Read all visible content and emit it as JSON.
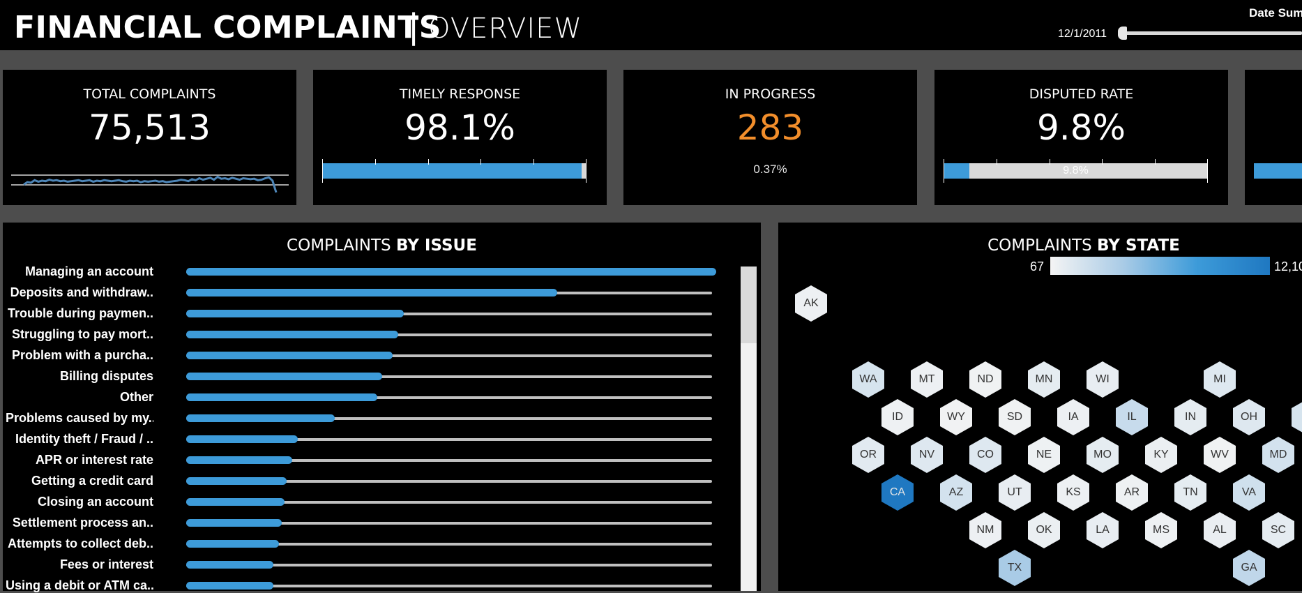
{
  "header": {
    "title": "FINANCIAL COMPLAINTS",
    "separator": "|",
    "subtitle": "OVERVIEW",
    "date_label": "Date Sum",
    "date_value": "12/1/2011"
  },
  "kpis": {
    "total": {
      "title": "TOTAL COMPLAINTS",
      "value": "75,513"
    },
    "timely": {
      "title": "TIMELY RESPONSE",
      "value": "98.1%",
      "fill_fraction": 0.981
    },
    "progress": {
      "title": "IN PROGRESS",
      "value": "283",
      "sub": "0.37%"
    },
    "disputed": {
      "title": "DISPUTED RATE",
      "value": "9.8%",
      "bar_label": "9.8%",
      "fill_fraction": 0.098
    }
  },
  "colors": {
    "accent": "#3d9bd9",
    "orange": "#f28e2b",
    "panel_bg": "#000000",
    "page_bg": "#4d4d4d"
  },
  "issues_panel": {
    "title_light": "COMPLAINTS ",
    "title_bold": "BY ISSUE"
  },
  "chart_data": [
    {
      "type": "line",
      "series": [
        {
          "values": [
            0.1,
            0.35,
            0.3,
            0.55,
            0.4,
            0.5,
            0.45,
            0.6,
            0.5,
            0.55,
            0.45,
            0.5,
            0.4,
            0.45,
            0.5,
            0.55,
            0.45,
            0.5,
            0.55,
            0.4,
            0.5,
            0.45,
            0.55,
            0.5,
            0.45,
            0.5,
            0.55,
            0.45,
            0.4,
            0.5,
            0.45,
            0.5,
            0.35,
            0.45,
            0.4,
            0.45,
            0.5,
            0.4,
            0.45,
            0.35,
            0.4,
            0.45,
            0.5,
            0.6,
            0.55,
            0.45,
            0.65,
            0.55,
            0.75,
            0.6,
            0.7,
            0.8,
            0.6,
            0.9,
            0.7,
            0.75,
            0.65,
            0.8,
            0.7,
            0.6,
            0.75,
            0.7,
            0.65,
            0.7,
            0.55,
            0.6,
            0.75,
            0.85,
            0.5,
            -0.7
          ]
        }
      ]
    },
    {
      "type": "bar",
      "categories": [
        "Managing an account",
        "Deposits and withdraw..",
        "Trouble during paymen..",
        "Struggling to pay mort..",
        "Problem with a purcha..",
        "Billing disputes",
        "Other",
        "Problems caused by my..",
        "Identity theft / Fraud / ..",
        "APR or interest rate",
        "Getting a credit card",
        "Closing an account",
        "Settlement process an..",
        "Attempts to collect deb..",
        "Fees or interest",
        "Using a debit or ATM ca.."
      ],
      "values": [
        100,
        70,
        41,
        40,
        39,
        37,
        36,
        28,
        21,
        20,
        19,
        18.5,
        18,
        17.5,
        16.5,
        16.5
      ]
    },
    {
      "type": "heatmap",
      "title": "COMPLAINTS BY STATE",
      "legend_min": "67",
      "legend_max": "12,10",
      "states": [
        {
          "s": "AK",
          "v": 0.05
        },
        {
          "s": "WA",
          "v": 0.2
        },
        {
          "s": "MT",
          "v": 0.05
        },
        {
          "s": "ND",
          "v": 0.03
        },
        {
          "s": "MN",
          "v": 0.1
        },
        {
          "s": "WI",
          "v": 0.08
        },
        {
          "s": "MI",
          "v": 0.15
        },
        {
          "s": "ID",
          "v": 0.04
        },
        {
          "s": "WY",
          "v": 0.02
        },
        {
          "s": "SD",
          "v": 0.03
        },
        {
          "s": "IA",
          "v": 0.05
        },
        {
          "s": "IL",
          "v": 0.3
        },
        {
          "s": "IN",
          "v": 0.1
        },
        {
          "s": "OH",
          "v": 0.15
        },
        {
          "s": "P",
          "v": 0.2
        },
        {
          "s": "OR",
          "v": 0.12
        },
        {
          "s": "NV",
          "v": 0.15
        },
        {
          "s": "CO",
          "v": 0.15
        },
        {
          "s": "NE",
          "v": 0.04
        },
        {
          "s": "MO",
          "v": 0.1
        },
        {
          "s": "KY",
          "v": 0.06
        },
        {
          "s": "WV",
          "v": 0.03
        },
        {
          "s": "MD",
          "v": 0.22
        },
        {
          "s": "CA",
          "v": 1.0
        },
        {
          "s": "AZ",
          "v": 0.22
        },
        {
          "s": "UT",
          "v": 0.08
        },
        {
          "s": "KS",
          "v": 0.05
        },
        {
          "s": "AR",
          "v": 0.04
        },
        {
          "s": "TN",
          "v": 0.1
        },
        {
          "s": "VA",
          "v": 0.25
        },
        {
          "s": "NM",
          "v": 0.05
        },
        {
          "s": "OK",
          "v": 0.06
        },
        {
          "s": "LA",
          "v": 0.08
        },
        {
          "s": "MS",
          "v": 0.04
        },
        {
          "s": "AL",
          "v": 0.07
        },
        {
          "s": "SC",
          "v": 0.1
        },
        {
          "s": "TX",
          "v": 0.5
        },
        {
          "s": "GA",
          "v": 0.35
        }
      ]
    }
  ]
}
